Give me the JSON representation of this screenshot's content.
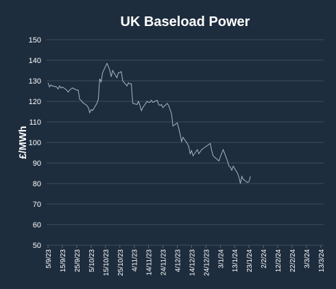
{
  "chart_data": {
    "type": "line",
    "title": "UK Baseload Power",
    "y_label": "£/MWh",
    "x": [
      "2023-09-05",
      "2023-09-06",
      "2023-09-07",
      "2023-09-08",
      "2023-09-11",
      "2023-09-12",
      "2023-09-13",
      "2023-09-14",
      "2023-09-15",
      "2023-09-18",
      "2023-09-19",
      "2023-09-20",
      "2023-09-21",
      "2023-09-22",
      "2023-09-25",
      "2023-09-26",
      "2023-09-27",
      "2023-09-28",
      "2023-09-29",
      "2023-10-02",
      "2023-10-03",
      "2023-10-04",
      "2023-10-05",
      "2023-10-06",
      "2023-10-09",
      "2023-10-10",
      "2023-10-11",
      "2023-10-12",
      "2023-10-13",
      "2023-10-16",
      "2023-10-17",
      "2023-10-18",
      "2023-10-19",
      "2023-10-20",
      "2023-10-23",
      "2023-10-24",
      "2023-10-25",
      "2023-10-26",
      "2023-10-27",
      "2023-10-30",
      "2023-10-31",
      "2023-11-01",
      "2023-11-02",
      "2023-11-03",
      "2023-11-06",
      "2023-11-07",
      "2023-11-08",
      "2023-11-09",
      "2023-11-10",
      "2023-11-13",
      "2023-11-14",
      "2023-11-15",
      "2023-11-16",
      "2023-11-17",
      "2023-11-20",
      "2023-11-21",
      "2023-11-22",
      "2023-11-23",
      "2023-11-24",
      "2023-11-27",
      "2023-11-28",
      "2023-11-29",
      "2023-11-30",
      "2023-12-01",
      "2023-12-04",
      "2023-12-05",
      "2023-12-06",
      "2023-12-07",
      "2023-12-08",
      "2023-12-11",
      "2023-12-12",
      "2023-12-13",
      "2023-12-14",
      "2023-12-15",
      "2023-12-18",
      "2023-12-19",
      "2023-12-20",
      "2023-12-21",
      "2023-12-22",
      "2023-12-27",
      "2023-12-28",
      "2023-12-29",
      "2024-01-02",
      "2024-01-03",
      "2024-01-05",
      "2024-01-08",
      "2024-01-09",
      "2024-01-10",
      "2024-01-11",
      "2024-01-12",
      "2024-01-15",
      "2024-01-16",
      "2024-01-17",
      "2024-01-18",
      "2024-01-19",
      "2024-01-22",
      "2024-01-23",
      "2024-01-24"
    ],
    "series": [
      {
        "name": "UK Baseload Power",
        "color": "#a9b7c6",
        "values": [
          129,
          127,
          128,
          127.5,
          127,
          126,
          127.5,
          126.5,
          127,
          125.5,
          124.5,
          125.5,
          126,
          126.5,
          125.5,
          125.5,
          121,
          120.5,
          119.5,
          118,
          117,
          114.5,
          116,
          115.5,
          119,
          121,
          131,
          129.5,
          134,
          138.5,
          137,
          135,
          132,
          135,
          131.5,
          134,
          134,
          134.5,
          130,
          127.5,
          129,
          128.5,
          128.5,
          119,
          118.5,
          120,
          118,
          115.5,
          117,
          120,
          119.5,
          119.5,
          120.5,
          119.5,
          120.5,
          118.5,
          118,
          118.5,
          117,
          119,
          118,
          116,
          114,
          108,
          109.5,
          107,
          104,
          100.5,
          102.5,
          99.5,
          98,
          94.5,
          96,
          93.5,
          96.5,
          94.5,
          95.5,
          96.5,
          97,
          99.5,
          96,
          93.5,
          91,
          93,
          96.5,
          91,
          88.5,
          88,
          86.5,
          88.5,
          85,
          83,
          80,
          83.5,
          82,
          80.5,
          81,
          83.5
        ]
      }
    ],
    "xlim": [
      "2023-09-04",
      "2024-03-15"
    ],
    "xticks": [
      {
        "value": "2023-09-05",
        "label": "5/9/23"
      },
      {
        "value": "2023-09-15",
        "label": "15/9/23"
      },
      {
        "value": "2023-09-25",
        "label": "25/9/23"
      },
      {
        "value": "2023-10-05",
        "label": "5/10/23"
      },
      {
        "value": "2023-10-15",
        "label": "15/10/23"
      },
      {
        "value": "2023-10-25",
        "label": "25/10/23"
      },
      {
        "value": "2023-11-04",
        "label": "4/11/23"
      },
      {
        "value": "2023-11-14",
        "label": "14/11/23"
      },
      {
        "value": "2023-11-24",
        "label": "24/11/23"
      },
      {
        "value": "2023-12-04",
        "label": "4/12/23"
      },
      {
        "value": "2023-12-14",
        "label": "14/12/23"
      },
      {
        "value": "2023-12-24",
        "label": "24/12/23"
      },
      {
        "value": "2024-01-03",
        "label": "3/1/24"
      },
      {
        "value": "2024-01-13",
        "label": "13/1/24"
      },
      {
        "value": "2024-01-23",
        "label": "23/1/24"
      },
      {
        "value": "2024-02-02",
        "label": "2/2/24"
      },
      {
        "value": "2024-02-12",
        "label": "12/2/24"
      },
      {
        "value": "2024-02-22",
        "label": "22/2/24"
      },
      {
        "value": "2024-03-03",
        "label": "3/3/24"
      },
      {
        "value": "2024-03-13",
        "label": "13/3/24"
      }
    ],
    "ylim": [
      50,
      150
    ],
    "yticks": [
      50,
      60,
      70,
      80,
      90,
      100,
      110,
      120,
      130,
      140,
      150
    ],
    "grid": true
  }
}
